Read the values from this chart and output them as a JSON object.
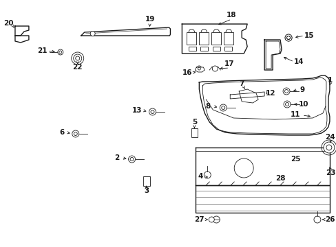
{
  "bg_color": "#ffffff",
  "line_color": "#1a1a1a",
  "figsize": [
    4.89,
    3.6
  ],
  "dpi": 100,
  "lw_main": 1.0,
  "lw_thin": 0.6,
  "fontsize_label": 7.5
}
